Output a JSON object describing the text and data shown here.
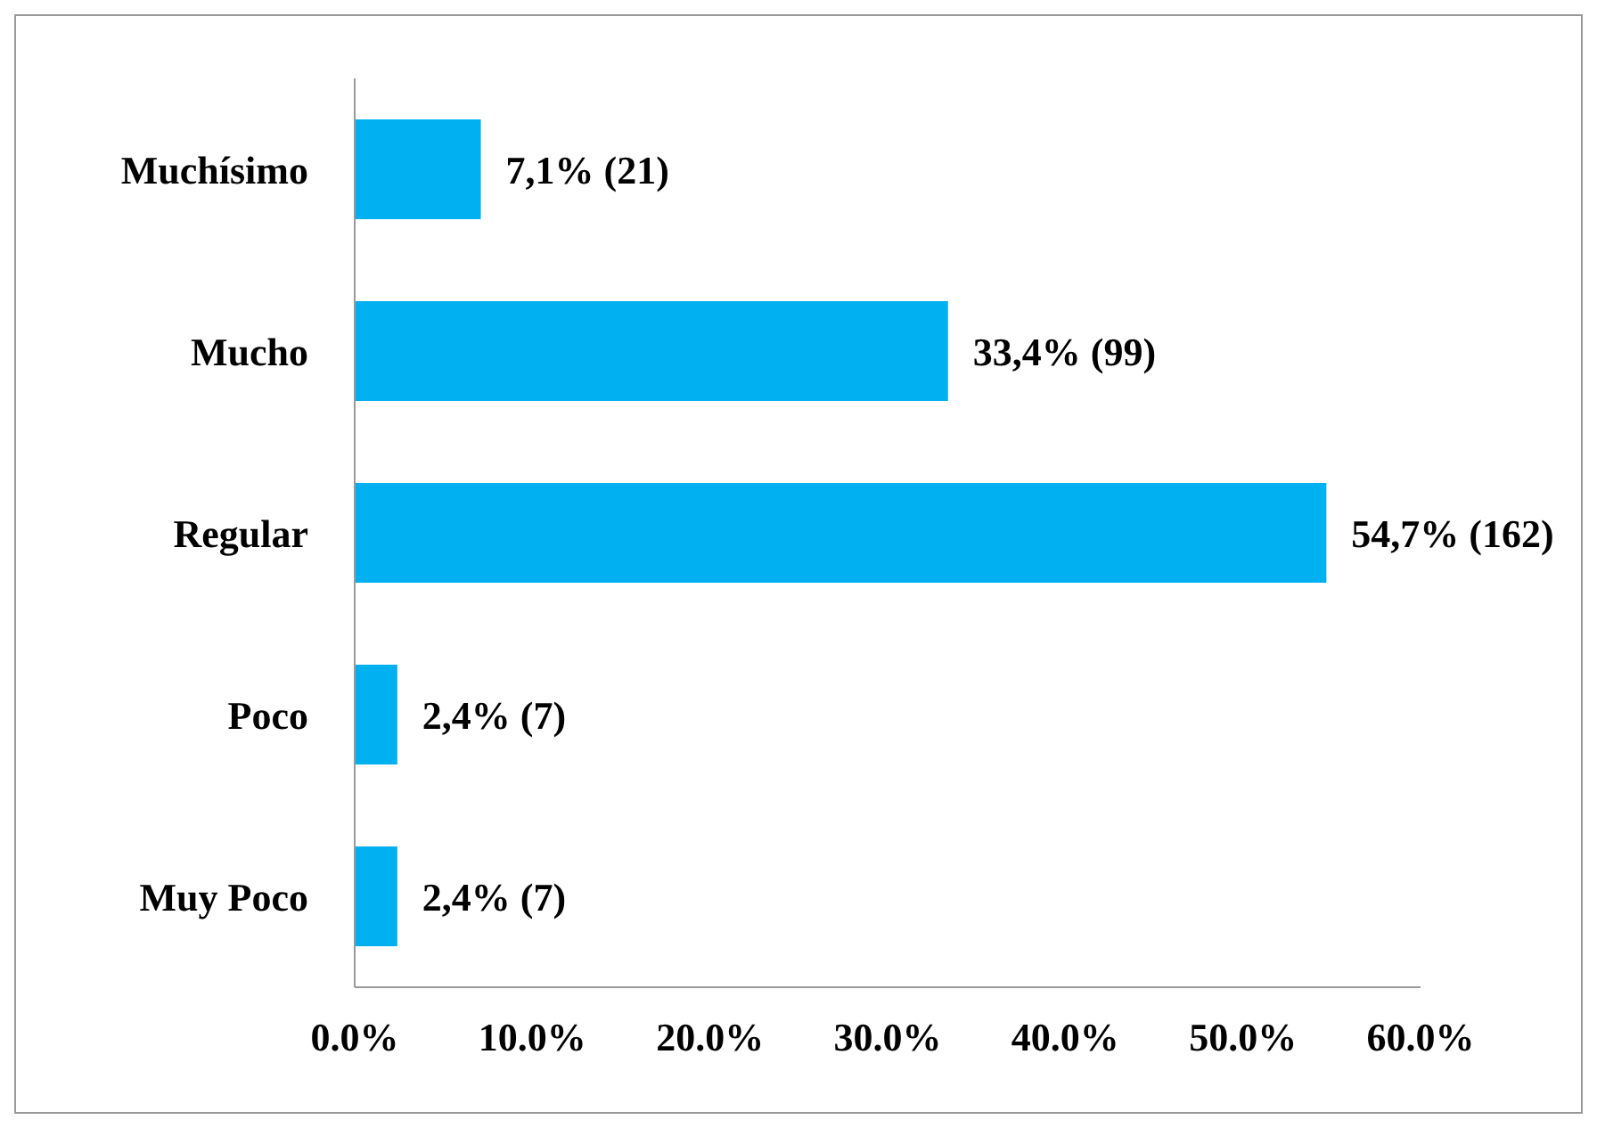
{
  "chart_data": {
    "type": "bar",
    "orientation": "horizontal",
    "categories": [
      "Muchísimo",
      "Mucho",
      "Regular",
      "Poco",
      "Muy Poco"
    ],
    "values": [
      7.1,
      33.4,
      54.7,
      2.4,
      2.4
    ],
    "value_labels": [
      "7,1%  (21)",
      "33,4%  (99)",
      "54,7%  (162)",
      "2,4%  (7)",
      "2,4%  (7)"
    ],
    "color": "#00b0f0",
    "xlim": [
      0,
      60
    ],
    "xticks": [
      {
        "value": 0,
        "label": "0.0%"
      },
      {
        "value": 10,
        "label": "10.0%"
      },
      {
        "value": 20,
        "label": "20.0%"
      },
      {
        "value": 30,
        "label": "30.0%"
      },
      {
        "value": 40,
        "label": "40.0%"
      },
      {
        "value": 50,
        "label": "50.0%"
      },
      {
        "value": 60,
        "label": "60.0%"
      }
    ],
    "grid": false,
    "legend": false
  }
}
